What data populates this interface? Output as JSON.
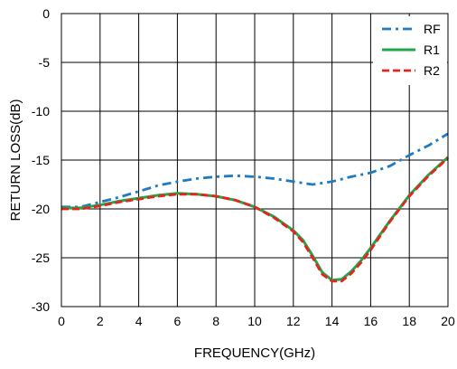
{
  "chart_data": {
    "type": "line",
    "title": "",
    "xlabel": "FREQUENCY(GHz)",
    "ylabel": "RETURN LOSS(dB)",
    "xlim": [
      0,
      20
    ],
    "ylim": [
      -30,
      0
    ],
    "xticks": [
      0,
      2,
      4,
      6,
      8,
      10,
      12,
      14,
      16,
      18,
      20
    ],
    "yticks": [
      0,
      -5,
      -10,
      -15,
      -20,
      -25,
      -30
    ],
    "grid": true,
    "legend_position": "top-right",
    "series": [
      {
        "name": "RF",
        "color": "#1f7bc1",
        "dash": "dash-dot",
        "x": [
          0,
          1,
          2,
          3,
          4,
          5,
          6,
          7,
          8,
          9,
          10,
          11,
          12,
          13,
          14,
          15,
          16,
          17,
          18,
          19,
          20
        ],
        "y": [
          -19.8,
          -19.8,
          -19.3,
          -18.8,
          -18.2,
          -17.6,
          -17.2,
          -16.9,
          -16.7,
          -16.6,
          -16.7,
          -16.9,
          -17.2,
          -17.5,
          -17.2,
          -16.7,
          -16.3,
          -15.6,
          -14.5,
          -13.5,
          -12.3
        ]
      },
      {
        "name": "R1",
        "color": "#1fa84a",
        "dash": "solid",
        "x": [
          0,
          1,
          2,
          3,
          4,
          5,
          6,
          7,
          8,
          9,
          10,
          11,
          12,
          12.5,
          13,
          13.5,
          14,
          14.5,
          15,
          15.5,
          16,
          17,
          18,
          19,
          20
        ],
        "y": [
          -19.9,
          -19.9,
          -19.6,
          -19.2,
          -18.9,
          -18.6,
          -18.4,
          -18.5,
          -18.7,
          -19.1,
          -19.8,
          -20.8,
          -22.2,
          -23.2,
          -24.8,
          -26.5,
          -27.3,
          -27.2,
          -26.4,
          -25.3,
          -24.0,
          -21.2,
          -18.6,
          -16.5,
          -14.7
        ]
      },
      {
        "name": "R2",
        "color": "#e8231c",
        "dash": "dashed",
        "x": [
          0,
          1,
          2,
          3,
          4,
          5,
          6,
          7,
          8,
          9,
          10,
          11,
          12,
          12.5,
          13,
          13.5,
          14,
          14.5,
          15,
          15.5,
          16,
          17,
          18,
          19,
          20
        ],
        "y": [
          -20.0,
          -20.0,
          -19.7,
          -19.3,
          -19.0,
          -18.7,
          -18.5,
          -18.5,
          -18.7,
          -19.1,
          -19.8,
          -20.9,
          -22.3,
          -23.4,
          -25.0,
          -26.7,
          -27.4,
          -27.4,
          -26.6,
          -25.5,
          -24.2,
          -21.3,
          -18.7,
          -16.6,
          -14.8
        ]
      }
    ]
  }
}
